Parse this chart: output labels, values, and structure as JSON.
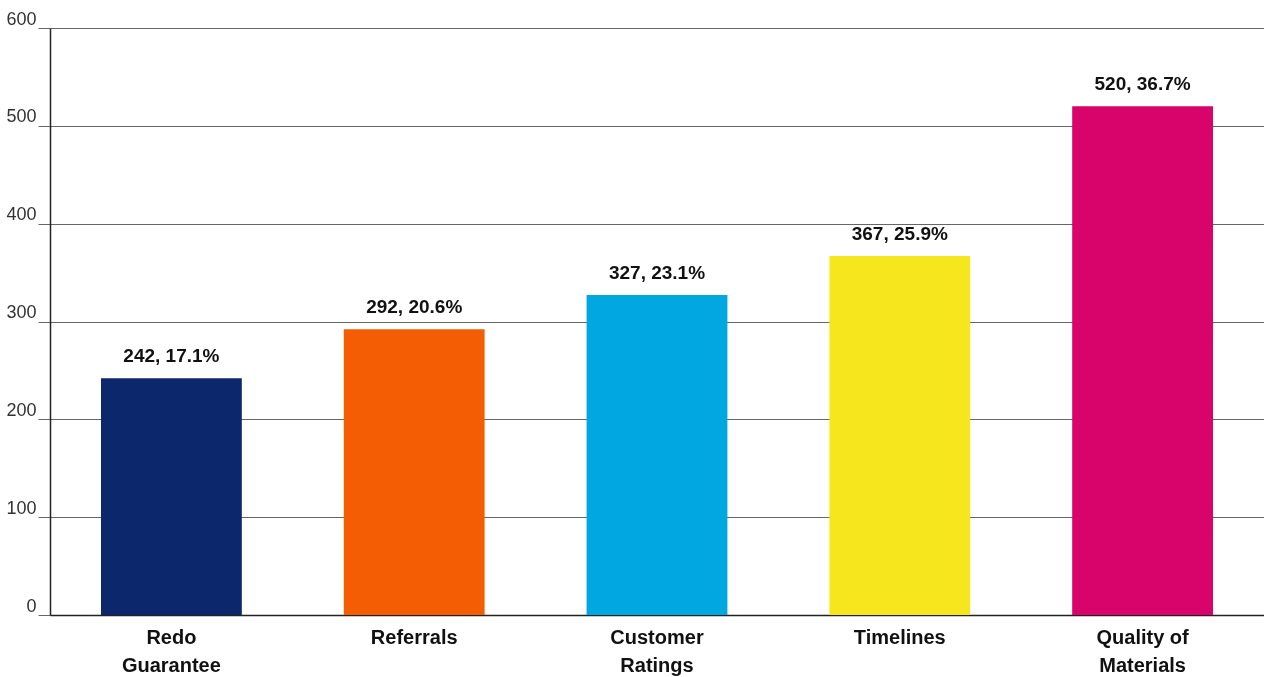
{
  "chart_data": {
    "type": "bar",
    "categories": [
      "Redo Guarantee",
      "Referrals",
      "Customer Ratings",
      "Timelines",
      "Quality of Materials"
    ],
    "values": [
      242,
      292,
      327,
      367,
      520
    ],
    "colors": [
      "#0c276b",
      "#f55d05",
      "#00a7e0",
      "#f5e61e",
      "#d8046c"
    ],
    "value_labels": [
      "242, 17.1%",
      "292, 20.6%",
      "327, 23.1%",
      "367, 25.9%",
      "520, 36.7%"
    ],
    "ylim": [
      0,
      600
    ],
    "yticks": [
      0,
      100,
      200,
      300,
      400,
      500,
      600
    ],
    "grid": "y"
  }
}
